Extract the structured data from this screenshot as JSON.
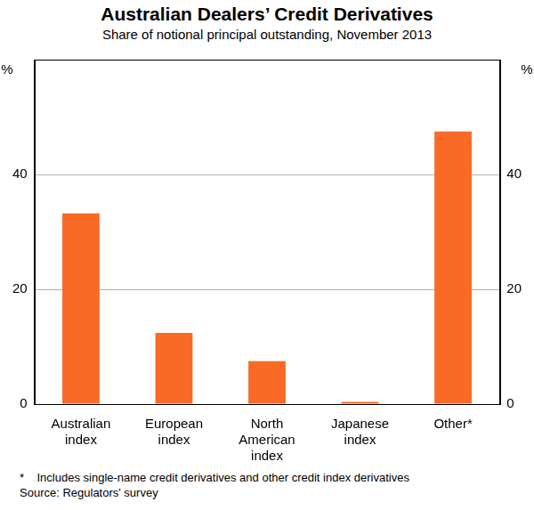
{
  "chart_data": {
    "type": "bar",
    "title": "Australian Dealers’ Credit Derivatives",
    "subtitle": "Share of notional principal outstanding, November 2013",
    "y_label": "%",
    "categories": [
      "Australian index",
      "European index",
      "North American index",
      "Japanese index",
      "Other*"
    ],
    "values": [
      33.2,
      12.4,
      7.5,
      0.4,
      47.5
    ],
    "color": "#f86a26",
    "ylim": [
      0,
      60
    ],
    "yticks": [
      0,
      20,
      40
    ],
    "grid": true,
    "footnote": "*    Includes single-name credit derivatives and other credit index derivatives",
    "source": "Source: Regulators' survey"
  }
}
